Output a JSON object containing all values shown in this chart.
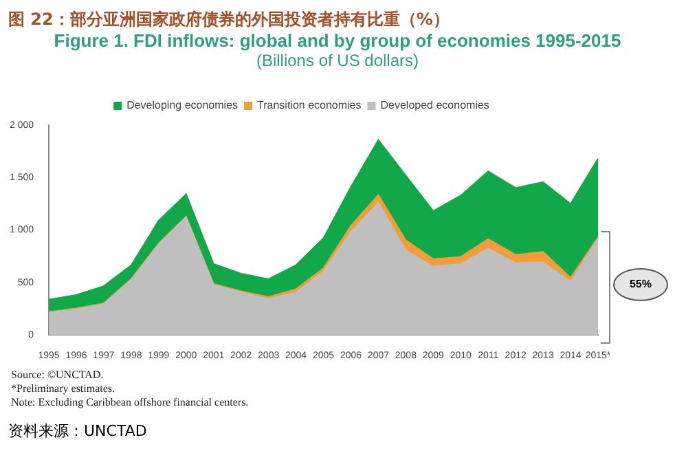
{
  "chart_data": {
    "type": "area",
    "stacked": true,
    "title": "图 22：部分亚洲国家政府债券的外国投资者持有比重（%）",
    "subtitle": "Figure 1.  FDI inflows: global and by group of economies 1995-2015",
    "ylabel": "(Billions of US dollars)",
    "categories": [
      "1995",
      "1996",
      "1997",
      "1998",
      "1999",
      "2000",
      "2001",
      "2002",
      "2003",
      "2004",
      "2005",
      "2006",
      "2007",
      "2008",
      "2009",
      "2010",
      "2011",
      "2012",
      "2013",
      "2014",
      "2015*"
    ],
    "series": [
      {
        "name": "Developed economies",
        "color": "#bfbfbf",
        "values": [
          215,
          247,
          295,
          525,
          864,
          1122,
          478,
          406,
          342,
          406,
          605,
          980,
          1262,
          804,
          653,
          677,
          824,
          685,
          693,
          505,
          915
        ]
      },
      {
        "name": "Transition economies",
        "color": "#f39c3c",
        "values": [
          5,
          6,
          7,
          8,
          8,
          7,
          9,
          11,
          20,
          30,
          30,
          60,
          71,
          99,
          71,
          67,
          91,
          79,
          99,
          40,
          16
        ]
      },
      {
        "name": "Developing economies",
        "color": "#12a84a",
        "values": [
          118,
          129,
          164,
          132,
          218,
          212,
          190,
          168,
          171,
          229,
          288,
          370,
          526,
          617,
          458,
          585,
          645,
          637,
          665,
          705,
          749
        ]
      }
    ],
    "ylim": [
      0,
      2000
    ],
    "yticks": [
      {
        "value": 0,
        "label": "0"
      },
      {
        "value": 500,
        "label": "500"
      },
      {
        "value": 1000,
        "label": "1 000"
      },
      {
        "value": 1500,
        "label": "1 500"
      },
      {
        "value": 2000,
        "label": "2 000"
      }
    ],
    "grid": false,
    "legend": "top",
    "annotations": [
      "55%",
      "Source: ©UNCTAD.",
      "*Preliminary estimates.",
      "Note: Excluding Caribbean offshore financial centers.",
      "资料来源：UNCTAD"
    ]
  }
}
